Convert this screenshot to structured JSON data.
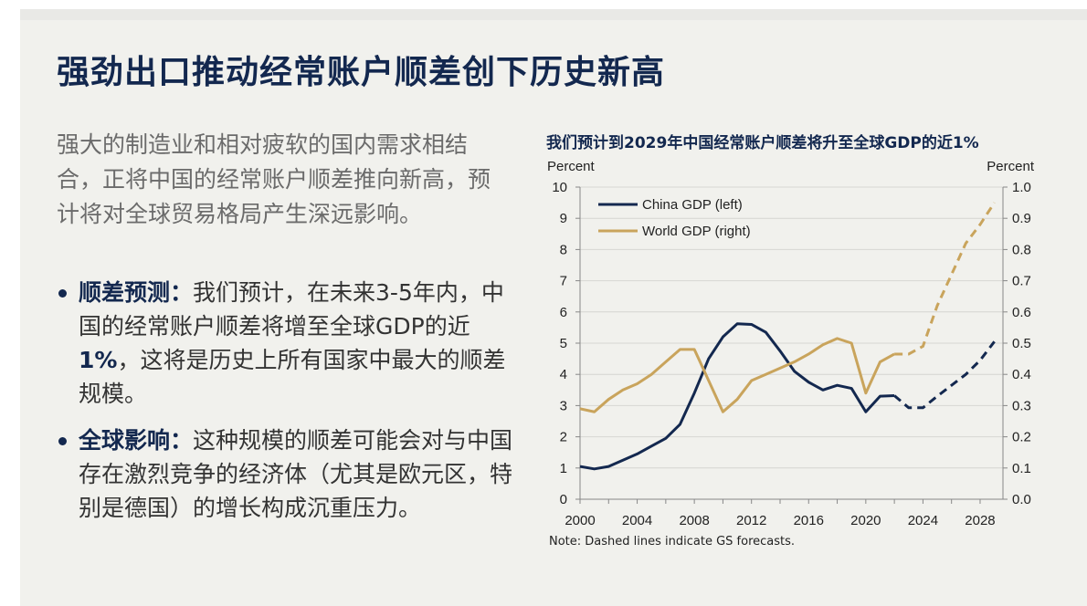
{
  "title": "强劲出口推动经常账户顺差创下历史新高",
  "intro": "强大的制造业和相对疲软的国内需求相结合，正将中国的经常账户顺差推向新高，预计将对全球贸易格局产生深远影响。",
  "bullets": [
    {
      "label": "顺差预测：",
      "text_pre": "我们预计，在未来3-5年内，中国的经常账户顺差将增至全球GDP的近 ",
      "highlight": "1%",
      "text_post": "，这将是历史上所有国家中最大的顺差规模。"
    },
    {
      "label": "全球影响：",
      "text_pre": "这种规模的顺差可能会对与中国存在激烈竞争的经济体（尤其是欧元区，特别是德国）的增长构成沉重压力。",
      "highlight": "",
      "text_post": ""
    }
  ],
  "colors": {
    "navy": "#13284f",
    "gold": "#c9a45c"
  },
  "chart_data": {
    "type": "line",
    "title": "我们预计到2029年中国经常账户顺差将升至全球GDP的近1%",
    "ylabel_left": "Percent",
    "ylabel_right": "Percent",
    "xlim": [
      2000,
      2029.6
    ],
    "ylim_left": [
      0,
      10
    ],
    "ylim_right": [
      0.0,
      1.0
    ],
    "x_ticks": [
      "2000",
      "2004",
      "2008",
      "2012",
      "2016",
      "2020",
      "2024",
      "2028"
    ],
    "y_ticks_left": [
      "0",
      "1",
      "2",
      "3",
      "4",
      "5",
      "6",
      "7",
      "8",
      "9",
      "10"
    ],
    "y_ticks_right": [
      "0.0",
      "0.1",
      "0.2",
      "0.3",
      "0.4",
      "0.5",
      "0.6",
      "0.7",
      "0.8",
      "0.9",
      "1.0"
    ],
    "grid": "horizontal",
    "legend": "top-left",
    "note": "Note: Dashed lines indicate GS forecasts.",
    "series": [
      {
        "name": "China GDP (left)",
        "axis": "left",
        "color": "#13284f",
        "x": [
          2000,
          2001,
          2002,
          2003,
          2004,
          2005,
          2006,
          2007,
          2008,
          2009,
          2010,
          2011,
          2012,
          2013,
          2014,
          2015,
          2016,
          2017,
          2018,
          2019,
          2020,
          2021,
          2022
        ],
        "values": [
          1.05,
          0.97,
          1.05,
          1.25,
          1.45,
          1.7,
          1.95,
          2.4,
          3.4,
          4.5,
          5.2,
          5.62,
          5.6,
          5.35,
          4.75,
          4.1,
          3.75,
          3.5,
          3.65,
          3.55,
          2.8,
          3.3,
          3.32
        ],
        "forecast_x": [
          2022,
          2023,
          2024,
          2025,
          2026,
          2027,
          2028,
          2029
        ],
        "forecast": [
          3.32,
          2.93,
          2.93,
          3.3,
          3.65,
          4.0,
          4.45,
          5.05
        ]
      },
      {
        "name": "World GDP (right)",
        "axis": "right",
        "color": "#c9a45c",
        "x": [
          2000,
          2001,
          2002,
          2003,
          2004,
          2005,
          2006,
          2007,
          2008,
          2009,
          2010,
          2011,
          2012,
          2013,
          2014,
          2015,
          2016,
          2017,
          2018,
          2019,
          2020,
          2021,
          2022
        ],
        "values": [
          0.29,
          0.28,
          0.32,
          0.35,
          0.37,
          0.4,
          0.44,
          0.48,
          0.48,
          0.38,
          0.28,
          0.32,
          0.38,
          0.4,
          0.42,
          0.44,
          0.465,
          0.495,
          0.515,
          0.5,
          0.34,
          0.44,
          0.465
        ],
        "forecast_x": [
          2022,
          2023,
          2024,
          2025,
          2026,
          2027,
          2028,
          2029
        ],
        "forecast": [
          0.465,
          0.465,
          0.49,
          0.62,
          0.72,
          0.82,
          0.88,
          0.95
        ]
      }
    ]
  }
}
